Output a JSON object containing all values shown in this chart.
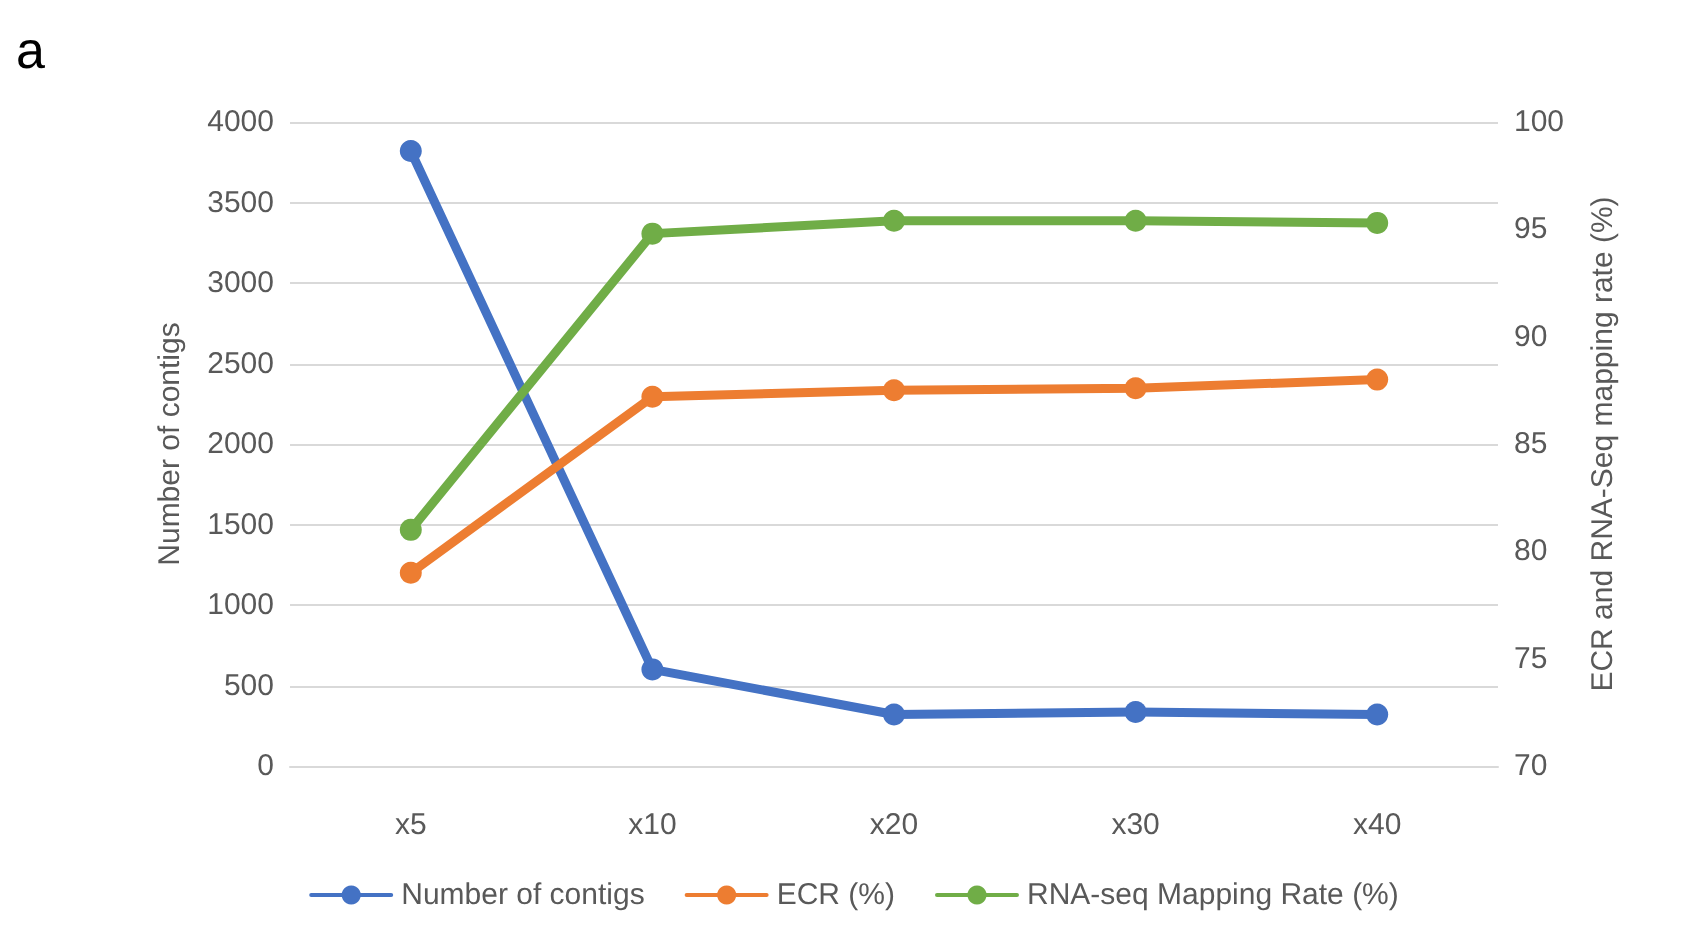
{
  "chart_data": {
    "type": "line",
    "categories": [
      "x5",
      "x10",
      "x20",
      "x30",
      "x40"
    ],
    "ylabel": "Number of contigs",
    "y2label": "ECR and RNA-Seq mapping rate (%)",
    "annotations": [
      "a"
    ],
    "series": [
      {
        "name": "Number of contigs",
        "color": "#4472c4",
        "values": [
          3820,
          600,
          320,
          335,
          320
        ]
      },
      {
        "name": "ECR (%)",
        "color": "#ed7d31",
        "axis": "y2",
        "values": [
          79.0,
          87.2,
          87.5,
          87.6,
          88.0
        ]
      },
      {
        "name": "RNA-seq Mapping Rate (%)",
        "color": "#70ad47",
        "axis": "y2",
        "values": [
          81.0,
          94.8,
          95.4,
          95.4,
          95.3
        ]
      }
    ],
    "ylim": [
      0,
      4000
    ],
    "yticks": [
      0,
      500,
      1000,
      1500,
      2000,
      2500,
      3000,
      3500,
      4000
    ],
    "y2lim": [
      70,
      100
    ],
    "y2ticks": [
      70,
      75,
      80,
      85,
      90,
      95,
      100
    ],
    "grid": "y",
    "legend": "bottom",
    "marker": "circle",
    "line_style": "solid"
  }
}
